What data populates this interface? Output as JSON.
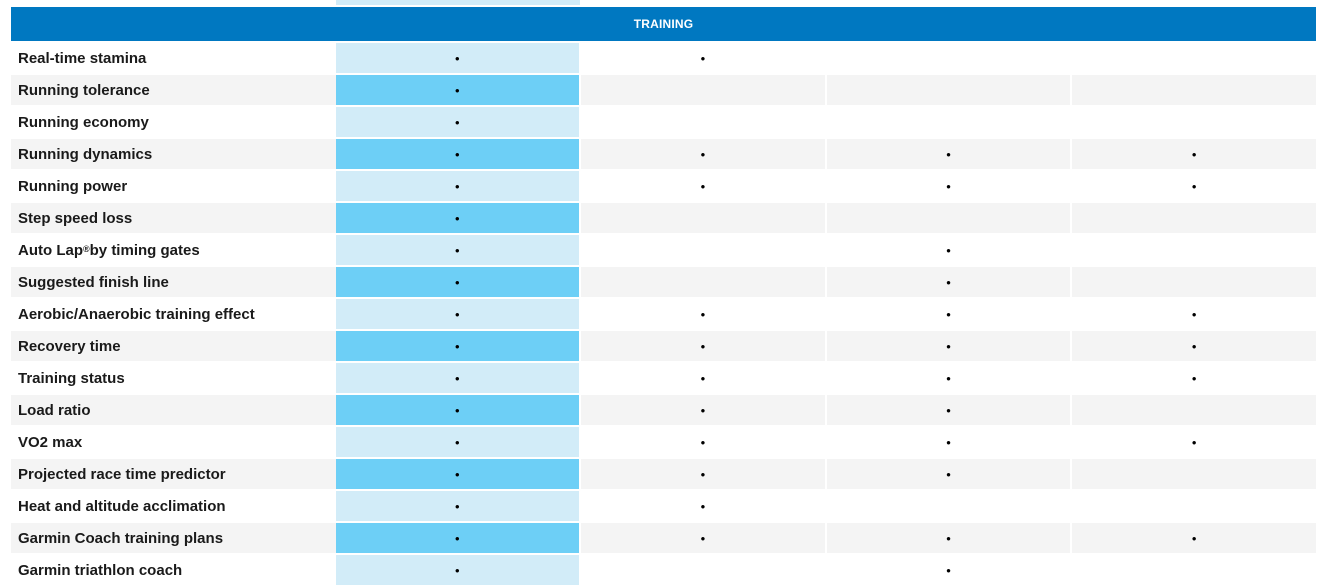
{
  "section": {
    "title": "TRAINING"
  },
  "bullet": "•",
  "rows": [
    {
      "label": "Real-time stamina",
      "marks": [
        true,
        true,
        false,
        false
      ]
    },
    {
      "label": "Running tolerance",
      "marks": [
        true,
        false,
        false,
        false
      ]
    },
    {
      "label": "Running economy",
      "marks": [
        true,
        false,
        false,
        false
      ]
    },
    {
      "label": "Running dynamics",
      "marks": [
        true,
        true,
        true,
        true
      ]
    },
    {
      "label": "Running power",
      "marks": [
        true,
        true,
        true,
        true
      ]
    },
    {
      "label": "Step speed loss",
      "marks": [
        true,
        false,
        false,
        false
      ]
    },
    {
      "label": "Auto Lap® by timing gates",
      "marks": [
        true,
        false,
        true,
        false
      ]
    },
    {
      "label": "Suggested finish line",
      "marks": [
        true,
        false,
        true,
        false
      ]
    },
    {
      "label": "Aerobic/Anaerobic training effect",
      "marks": [
        true,
        true,
        true,
        true
      ]
    },
    {
      "label": "Recovery time",
      "marks": [
        true,
        true,
        true,
        true
      ]
    },
    {
      "label": "Training status",
      "marks": [
        true,
        true,
        true,
        true
      ]
    },
    {
      "label": "Load ratio",
      "marks": [
        true,
        true,
        true,
        false
      ]
    },
    {
      "label": "VO2 max",
      "marks": [
        true,
        true,
        true,
        true
      ]
    },
    {
      "label": "Projected race time predictor",
      "marks": [
        true,
        true,
        true,
        false
      ]
    },
    {
      "label": "Heat and altitude acclimation",
      "marks": [
        true,
        true,
        false,
        false
      ]
    },
    {
      "label": "Garmin Coach training plans",
      "marks": [
        true,
        true,
        true,
        true
      ]
    },
    {
      "label": "Garmin triathlon coach",
      "marks": [
        true,
        false,
        true,
        false
      ]
    }
  ],
  "colors": {
    "header_bg": "#0078c1",
    "highlight_column_light": "#d2ecf8",
    "highlight_column_dark": "#6dcff6",
    "stripe": "#f4f4f4"
  }
}
